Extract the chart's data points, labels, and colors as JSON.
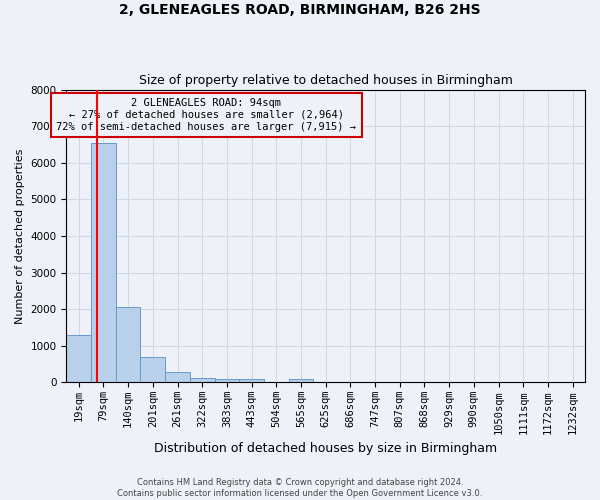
{
  "title": "2, GLENEAGLES ROAD, BIRMINGHAM, B26 2HS",
  "subtitle": "Size of property relative to detached houses in Birmingham",
  "xlabel": "Distribution of detached houses by size in Birmingham",
  "ylabel": "Number of detached properties",
  "footer_line1": "Contains HM Land Registry data © Crown copyright and database right 2024.",
  "footer_line2": "Contains public sector information licensed under the Open Government Licence v3.0.",
  "bar_labels": [
    "19sqm",
    "79sqm",
    "140sqm",
    "201sqm",
    "261sqm",
    "322sqm",
    "383sqm",
    "443sqm",
    "504sqm",
    "565sqm",
    "625sqm",
    "686sqm",
    "747sqm",
    "807sqm",
    "868sqm",
    "929sqm",
    "990sqm",
    "1050sqm",
    "1111sqm",
    "1172sqm",
    "1232sqm"
  ],
  "bar_values": [
    1300,
    6550,
    2050,
    680,
    280,
    120,
    80,
    80,
    0,
    80,
    0,
    0,
    0,
    0,
    0,
    0,
    0,
    0,
    0,
    0,
    0
  ],
  "bar_color": "#b8d0ea",
  "bar_edge_color": "#6699cc",
  "grid_color": "#d0d8e8",
  "background_color": "#eef2f8",
  "red_line_x": 0.75,
  "annotation_text": "2 GLENEAGLES ROAD: 94sqm\n← 27% of detached houses are smaller (2,964)\n72% of semi-detached houses are larger (7,915) →",
  "annotation_box_color": "#cc0000",
  "ylim": [
    0,
    8000
  ],
  "yticks": [
    0,
    1000,
    2000,
    3000,
    4000,
    5000,
    6000,
    7000,
    8000
  ],
  "title_fontsize": 10,
  "subtitle_fontsize": 9,
  "xlabel_fontsize": 9,
  "ylabel_fontsize": 8,
  "tick_fontsize": 7.5,
  "annotation_fontsize": 7.5
}
